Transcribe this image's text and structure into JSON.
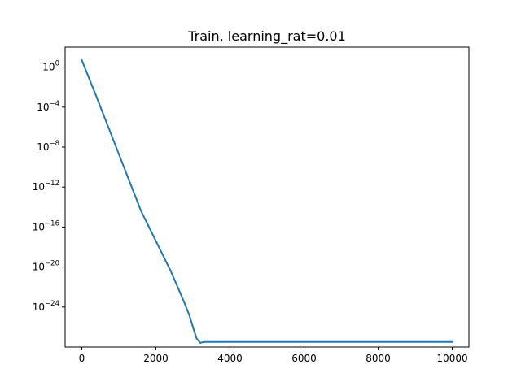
{
  "chart_data": {
    "type": "line",
    "title": "Train, learning_rat=0.01",
    "xlabel": "",
    "ylabel": "",
    "x_scale": "linear",
    "y_scale": "log",
    "xlim": [
      -450,
      10450
    ],
    "ylim": [
      1e-28,
      100
    ],
    "x_ticks": [
      0,
      2000,
      4000,
      6000,
      8000,
      10000
    ],
    "x_tick_labels": [
      "0",
      "2000",
      "4000",
      "6000",
      "8000",
      "10000"
    ],
    "y_ticks": [
      1,
      0.0001,
      1e-08,
      1e-12,
      1e-16,
      1e-20,
      1e-24
    ],
    "y_tick_labels": [
      {
        "base": "10",
        "exp": "0"
      },
      {
        "base": "10",
        "exp": "−4"
      },
      {
        "base": "10",
        "exp": "−8"
      },
      {
        "base": "10",
        "exp": "−12"
      },
      {
        "base": "10",
        "exp": "−16"
      },
      {
        "base": "10",
        "exp": "−20"
      },
      {
        "base": "10",
        "exp": "−24"
      }
    ],
    "grid": false,
    "legend": "none",
    "series": [
      {
        "color": "#1f77b4",
        "points": [
          {
            "x": 0,
            "y": 5
          },
          {
            "x": 400,
            "y": 0.001
          },
          {
            "x": 800,
            "y": 1.6e-07
          },
          {
            "x": 1200,
            "y": 2.5e-11
          },
          {
            "x": 1600,
            "y": 4e-15
          },
          {
            "x": 2000,
            "y": 4e-18
          },
          {
            "x": 2400,
            "y": 4e-21
          },
          {
            "x": 2750,
            "y": 4e-24
          },
          {
            "x": 2900,
            "y": 1.6e-25
          },
          {
            "x": 3000,
            "y": 1e-26
          },
          {
            "x": 3100,
            "y": 7e-28
          },
          {
            "x": 3200,
            "y": 2.6e-28
          },
          {
            "x": 3300,
            "y": 3.2e-28
          },
          {
            "x": 4000,
            "y": 3.2e-28
          },
          {
            "x": 6000,
            "y": 3.2e-28
          },
          {
            "x": 8000,
            "y": 3.2e-28
          },
          {
            "x": 10000,
            "y": 3.2e-28
          }
        ]
      }
    ]
  }
}
